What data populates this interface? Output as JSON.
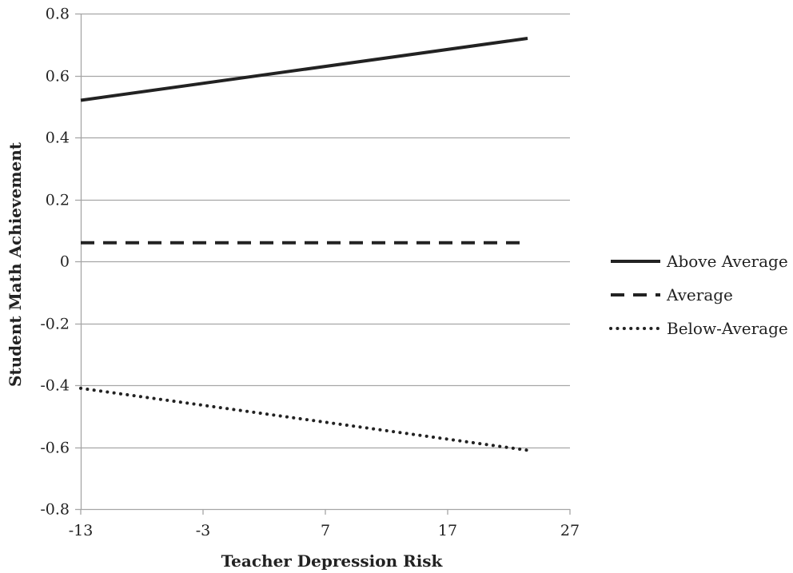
{
  "chart_data": {
    "type": "line",
    "title": "",
    "xlabel": "Teacher Depression Risk",
    "ylabel": "Student Math Achievement",
    "x_ticks": [
      -13,
      -3,
      7,
      17,
      27
    ],
    "x_tick_labels": [
      "-13",
      "-3",
      "7",
      "17",
      "27"
    ],
    "y_ticks": [
      -0.8,
      -0.6,
      -0.4,
      -0.2,
      0,
      0.2,
      0.4,
      0.6,
      0.8
    ],
    "y_tick_labels": [
      "-0.8",
      "-0.6",
      "-0.4",
      "-0.2",
      "0",
      "0.2",
      "0.4",
      "0.6",
      "0.8"
    ],
    "xlim": [
      -13,
      27
    ],
    "ylim": [
      -0.8,
      0.8
    ],
    "grid": "horizontal",
    "legend_position": "right",
    "series": [
      {
        "name": "Above Average",
        "style": "solid",
        "color": "#222222",
        "x": [
          -13,
          27
        ],
        "y": [
          0.52,
          0.72
        ]
      },
      {
        "name": "Average",
        "style": "dashed",
        "color": "#222222",
        "x": [
          -13,
          27
        ],
        "y": [
          0.06,
          0.06
        ]
      },
      {
        "name": "Below-Average",
        "style": "dotted",
        "color": "#222222",
        "x": [
          -13,
          27
        ],
        "y": [
          -0.41,
          -0.61
        ]
      }
    ]
  }
}
